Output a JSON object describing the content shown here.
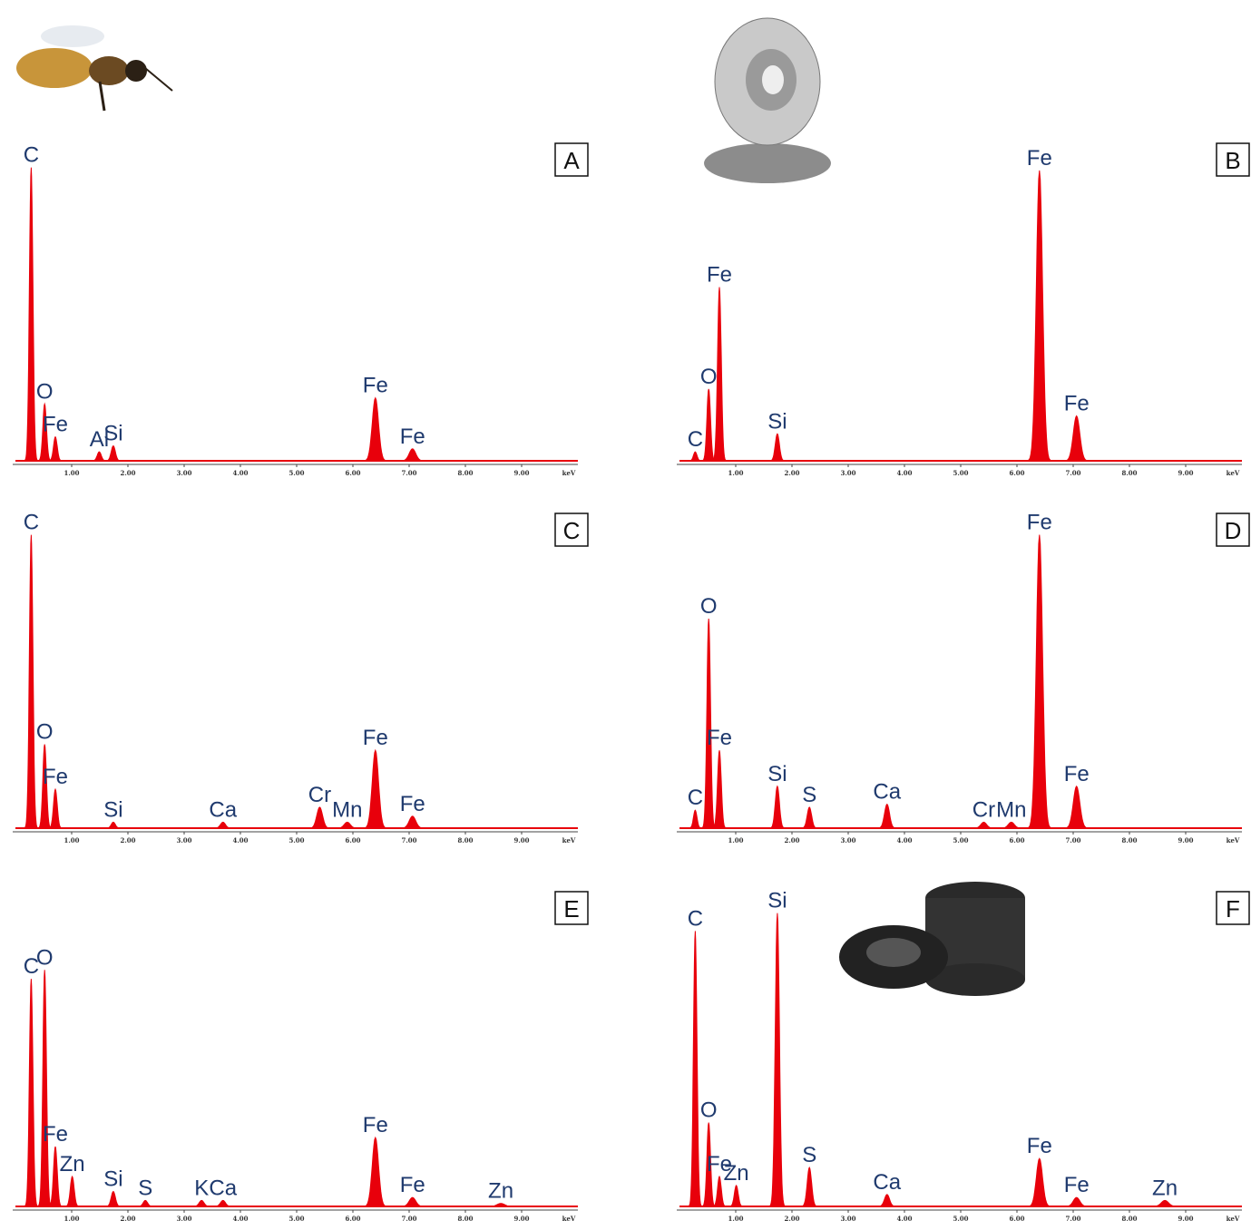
{
  "chart_data": [
    {
      "type": "spectrum",
      "panel": "A",
      "xlabel": "keV",
      "xlim": [
        0,
        10
      ],
      "ylim": [
        0,
        100
      ],
      "color": "#e8000b",
      "xticks": [
        {
          "value": 1,
          "label": "1.00"
        },
        {
          "value": 2,
          "label": "2.00"
        },
        {
          "value": 3,
          "label": "3.00"
        },
        {
          "value": 4,
          "label": "4.00"
        },
        {
          "value": 5,
          "label": "5.00"
        },
        {
          "value": 6,
          "label": "6.00"
        },
        {
          "value": 7,
          "label": "7.00"
        },
        {
          "value": 8,
          "label": "8.00"
        },
        {
          "value": 9,
          "label": "9.00"
        }
      ],
      "peak_labels": [
        "C",
        "O",
        "Fe",
        "Al",
        "Si",
        "Fe",
        "Fe"
      ],
      "x": [
        0.28,
        0.52,
        0.71,
        1.49,
        1.74,
        6.4,
        7.06
      ],
      "values": [
        98,
        19,
        8,
        3,
        5,
        21,
        4
      ]
    },
    {
      "type": "spectrum",
      "panel": "B",
      "xlabel": "keV",
      "xlim": [
        0,
        10
      ],
      "ylim": [
        0,
        100
      ],
      "color": "#e8000b",
      "xticks": [
        {
          "value": 1,
          "label": "1.00"
        },
        {
          "value": 2,
          "label": "2.00"
        },
        {
          "value": 3,
          "label": "3.00"
        },
        {
          "value": 4,
          "label": "4.00"
        },
        {
          "value": 5,
          "label": "5.00"
        },
        {
          "value": 6,
          "label": "6.00"
        },
        {
          "value": 7,
          "label": "7.00"
        },
        {
          "value": 8,
          "label": "8.00"
        },
        {
          "value": 9,
          "label": "9.00"
        }
      ],
      "peak_labels": [
        "C",
        "O",
        "Fe",
        "Si",
        "Fe",
        "Fe"
      ],
      "x": [
        0.28,
        0.52,
        0.71,
        1.74,
        6.4,
        7.06
      ],
      "values": [
        3,
        24,
        58,
        9,
        97,
        15
      ]
    },
    {
      "type": "spectrum",
      "panel": "C",
      "xlabel": "keV",
      "xlim": [
        0,
        10
      ],
      "ylim": [
        0,
        100
      ],
      "color": "#e8000b",
      "xticks": [
        {
          "value": 1,
          "label": "1.00"
        },
        {
          "value": 2,
          "label": "2.00"
        },
        {
          "value": 3,
          "label": "3.00"
        },
        {
          "value": 4,
          "label": "4.00"
        },
        {
          "value": 5,
          "label": "5.00"
        },
        {
          "value": 6,
          "label": "6.00"
        },
        {
          "value": 7,
          "label": "7.00"
        },
        {
          "value": 8,
          "label": "8.00"
        },
        {
          "value": 9,
          "label": "9.00"
        }
      ],
      "peak_labels": [
        "C",
        "O",
        "Fe",
        "Si",
        "Ca",
        "Cr",
        "Mn",
        "Fe",
        "Fe"
      ],
      "x": [
        0.28,
        0.52,
        0.71,
        1.74,
        3.69,
        5.41,
        5.9,
        6.4,
        7.06
      ],
      "values": [
        98,
        28,
        13,
        2,
        2,
        7,
        2,
        26,
        4
      ]
    },
    {
      "type": "spectrum",
      "panel": "D",
      "xlabel": "keV",
      "xlim": [
        0,
        10
      ],
      "ylim": [
        0,
        100
      ],
      "color": "#e8000b",
      "xticks": [
        {
          "value": 1,
          "label": "1.00"
        },
        {
          "value": 2,
          "label": "2.00"
        },
        {
          "value": 3,
          "label": "3.00"
        },
        {
          "value": 4,
          "label": "4.00"
        },
        {
          "value": 5,
          "label": "5.00"
        },
        {
          "value": 6,
          "label": "6.00"
        },
        {
          "value": 7,
          "label": "7.00"
        },
        {
          "value": 8,
          "label": "8.00"
        },
        {
          "value": 9,
          "label": "9.00"
        }
      ],
      "peak_labels": [
        "C",
        "O",
        "Fe",
        "Si",
        "S",
        "Ca",
        "Cr",
        "Mn",
        "Fe",
        "Fe"
      ],
      "x": [
        0.28,
        0.52,
        0.71,
        1.74,
        2.31,
        3.69,
        5.41,
        5.9,
        6.4,
        7.06
      ],
      "values": [
        6,
        70,
        26,
        14,
        7,
        8,
        2,
        2,
        98,
        14
      ]
    },
    {
      "type": "spectrum",
      "panel": "E",
      "xlabel": "keV",
      "xlim": [
        0,
        10
      ],
      "ylim": [
        0,
        100
      ],
      "color": "#e8000b",
      "xticks": [
        {
          "value": 1,
          "label": "1.00"
        },
        {
          "value": 2,
          "label": "2.00"
        },
        {
          "value": 3,
          "label": "3.00"
        },
        {
          "value": 4,
          "label": "4.00"
        },
        {
          "value": 5,
          "label": "5.00"
        },
        {
          "value": 6,
          "label": "6.00"
        },
        {
          "value": 7,
          "label": "7.00"
        },
        {
          "value": 8,
          "label": "8.00"
        },
        {
          "value": 9,
          "label": "9.00"
        }
      ],
      "peak_labels": [
        "C",
        "O",
        "Fe",
        "Zn",
        "Si",
        "S",
        "K",
        "Ca",
        "Fe",
        "Fe",
        "Zn"
      ],
      "x": [
        0.28,
        0.52,
        0.71,
        1.01,
        1.74,
        2.31,
        3.31,
        3.69,
        6.4,
        7.06,
        8.63
      ],
      "values": [
        76,
        79,
        20,
        10,
        5,
        2,
        2,
        2,
        23,
        3,
        1
      ]
    },
    {
      "type": "spectrum",
      "panel": "F",
      "xlabel": "keV",
      "xlim": [
        0,
        10
      ],
      "ylim": [
        0,
        100
      ],
      "color": "#e8000b",
      "xticks": [
        {
          "value": 1,
          "label": "1.00"
        },
        {
          "value": 2,
          "label": "2.00"
        },
        {
          "value": 3,
          "label": "3.00"
        },
        {
          "value": 4,
          "label": "4.00"
        },
        {
          "value": 5,
          "label": "5.00"
        },
        {
          "value": 6,
          "label": "6.00"
        },
        {
          "value": 7,
          "label": "7.00"
        },
        {
          "value": 8,
          "label": "8.00"
        },
        {
          "value": 9,
          "label": "9.00"
        }
      ],
      "peak_labels": [
        "C",
        "O",
        "Fe",
        "Zn",
        "Si",
        "S",
        "Ca",
        "Fe",
        "Fe",
        "Zn"
      ],
      "x": [
        0.28,
        0.52,
        0.71,
        1.01,
        1.74,
        2.31,
        3.69,
        6.4,
        7.06,
        8.63
      ],
      "values": [
        92,
        28,
        10,
        7,
        98,
        13,
        4,
        16,
        3,
        2
      ]
    }
  ]
}
